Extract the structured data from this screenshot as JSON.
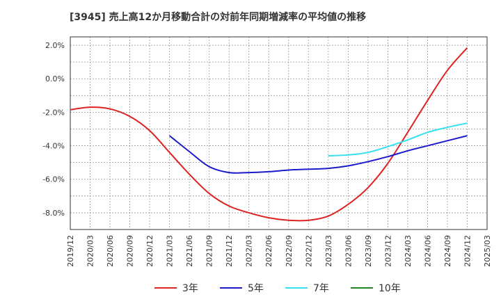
{
  "chart_data": {
    "type": "line",
    "title": "[3945]  売上高12か月移動合計の対前年同期増減率の平均値の推移",
    "xlabel": "",
    "ylabel": "",
    "ylim": [
      -9.0,
      2.5
    ],
    "x_ticks": [
      "2019/12",
      "2020/03",
      "2020/06",
      "2020/09",
      "2020/12",
      "2021/03",
      "2021/06",
      "2021/09",
      "2021/12",
      "2022/03",
      "2022/06",
      "2022/09",
      "2022/12",
      "2023/03",
      "2023/06",
      "2023/09",
      "2023/12",
      "2024/03",
      "2024/06",
      "2024/09",
      "2024/12",
      "2025/03"
    ],
    "y_ticks": [
      "2.0%",
      "0.0%",
      "-2.0%",
      "-4.0%",
      "-6.0%",
      "-8.0%"
    ],
    "y_tick_values": [
      2.0,
      0.0,
      -2.0,
      -4.0,
      -6.0,
      -8.0
    ],
    "grid": true,
    "legend_position": "bottom",
    "series": [
      {
        "name": "3年",
        "color": "#dd2222",
        "x": [
          "2019/12",
          "2020/03",
          "2020/06",
          "2020/09",
          "2020/12",
          "2021/03",
          "2021/06",
          "2021/09",
          "2021/12",
          "2022/03",
          "2022/06",
          "2022/09",
          "2022/12",
          "2023/03",
          "2023/06",
          "2023/09",
          "2023/12",
          "2024/03",
          "2024/06",
          "2024/09",
          "2024/12"
        ],
        "values": [
          -1.85,
          -1.7,
          -1.8,
          -2.25,
          -3.1,
          -4.4,
          -5.7,
          -6.85,
          -7.6,
          -8.0,
          -8.3,
          -8.45,
          -8.45,
          -8.2,
          -7.5,
          -6.5,
          -5.05,
          -3.2,
          -1.3,
          0.5,
          1.85
        ]
      },
      {
        "name": "5年",
        "color": "#1a1acc",
        "x": [
          "2021/03",
          "2021/06",
          "2021/09",
          "2021/12",
          "2022/03",
          "2022/06",
          "2022/09",
          "2022/12",
          "2023/03",
          "2023/06",
          "2023/09",
          "2023/12",
          "2024/03",
          "2024/06",
          "2024/09",
          "2024/12"
        ],
        "values": [
          -3.4,
          -4.35,
          -5.25,
          -5.6,
          -5.6,
          -5.55,
          -5.45,
          -5.4,
          -5.35,
          -5.2,
          -4.95,
          -4.65,
          -4.3,
          -4.0,
          -3.7,
          -3.4
        ]
      },
      {
        "name": "7年",
        "color": "#33e0f0",
        "x": [
          "2023/03",
          "2023/06",
          "2023/09",
          "2023/12",
          "2024/03",
          "2024/06",
          "2024/09",
          "2024/12"
        ],
        "values": [
          -4.6,
          -4.55,
          -4.4,
          -4.05,
          -3.65,
          -3.2,
          -2.9,
          -2.65
        ]
      },
      {
        "name": "10年",
        "color": "#228822",
        "x": [],
        "values": []
      }
    ]
  }
}
